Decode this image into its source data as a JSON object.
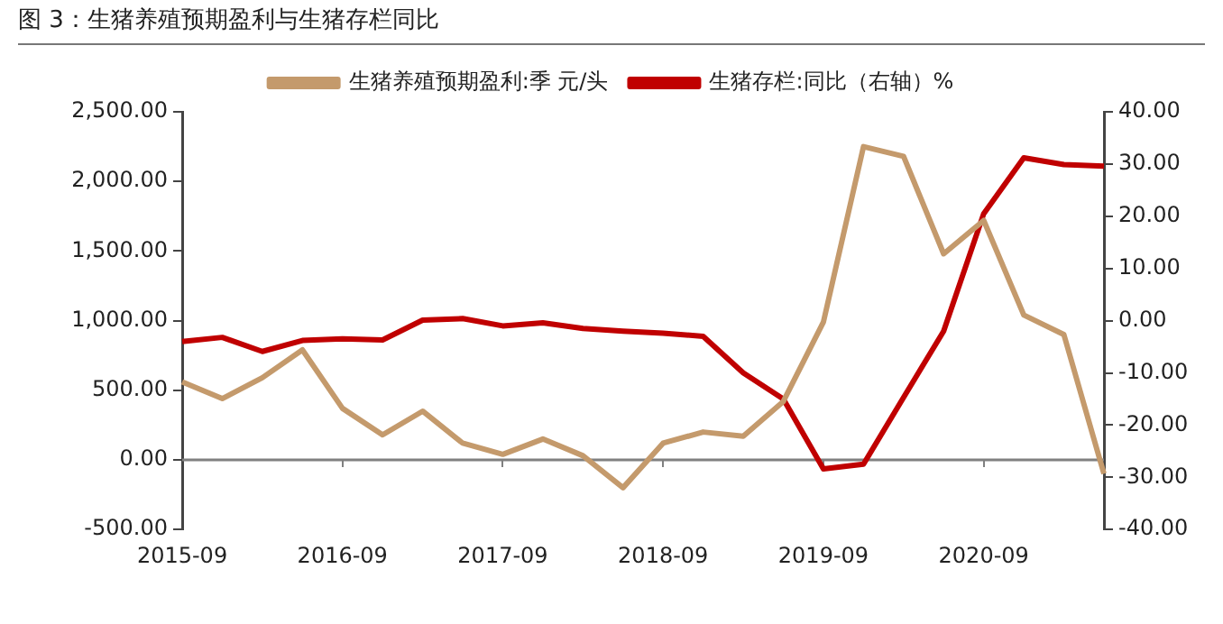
{
  "chart_data": {
    "type": "line",
    "title": "图 3：生猪养殖预期盈利与生猪存栏同比",
    "categories": [
      "2015-09",
      null,
      null,
      null,
      "2016-09",
      null,
      null,
      null,
      "2017-09",
      null,
      null,
      null,
      "2018-09",
      null,
      null,
      null,
      "2019-09",
      null,
      null,
      null,
      "2020-09",
      null,
      null,
      null
    ],
    "series": [
      {
        "name": "生猪养殖预期盈利:季 元/头",
        "color": "#c49a6c",
        "values": [
          560,
          440,
          590,
          790,
          370,
          180,
          350,
          120,
          40,
          150,
          30,
          -200,
          120,
          200,
          170,
          420,
          990,
          2250,
          2180,
          1480,
          1720,
          1040,
          900,
          -100
        ]
      },
      {
        "name": "生猪存栏:同比（右轴）%",
        "color": "#c00000",
        "axis": "y2",
        "values": [
          -4.0,
          -3.2,
          -5.9,
          -3.8,
          -3.5,
          -3.7,
          0.1,
          0.4,
          -1.0,
          -0.4,
          -1.5,
          -2.0,
          -2.4,
          -3.0,
          -10.0,
          -15.0,
          -28.4,
          -27.5,
          -14.7,
          -2.0,
          20.5,
          31.2,
          29.9,
          29.6
        ]
      }
    ],
    "ylim": [
      -500,
      2500
    ],
    "yticks": [
      {
        "value": -500,
        "label": "-500.00"
      },
      {
        "value": 0,
        "label": "0.00"
      },
      {
        "value": 500,
        "label": "500.00"
      },
      {
        "value": 1000,
        "label": "1,000.00"
      },
      {
        "value": 1500,
        "label": "1,500.00"
      },
      {
        "value": 2000,
        "label": "2,000.00"
      },
      {
        "value": 2500,
        "label": "2,500.00"
      }
    ],
    "y2lim": [
      -40,
      40
    ],
    "y2ticks": [
      {
        "value": -40,
        "label": "-40.00"
      },
      {
        "value": -30,
        "label": "-30.00"
      },
      {
        "value": -20,
        "label": "-20.00"
      },
      {
        "value": -10,
        "label": "-10.00"
      },
      {
        "value": 0,
        "label": "0.00"
      },
      {
        "value": 10,
        "label": "10.00"
      },
      {
        "value": 20,
        "label": "20.00"
      },
      {
        "value": 30,
        "label": "30.00"
      },
      {
        "value": 40,
        "label": "40.00"
      }
    ],
    "ref_lines": [
      {
        "axis": "y",
        "value": 0,
        "color": "#808080"
      }
    ],
    "grid": false,
    "legend": "top",
    "marker": "none",
    "line_style": "solid"
  }
}
